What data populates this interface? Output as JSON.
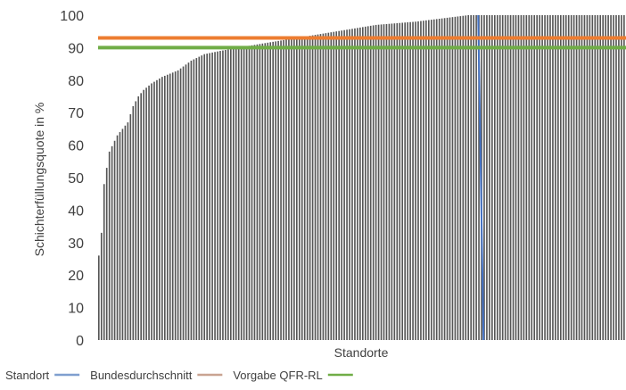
{
  "chart_data": {
    "type": "bar",
    "title": "",
    "xlabel": "Standorte",
    "ylabel": "Schichterfüllungsquote in %",
    "ylim": [
      0,
      100
    ],
    "yticks": [
      0,
      10,
      20,
      30,
      40,
      50,
      60,
      70,
      80,
      90,
      100
    ],
    "grid": false,
    "bar_count": 200,
    "sorted_ascending": true,
    "value_anchors": [
      [
        0,
        26
      ],
      [
        1,
        33
      ],
      [
        2,
        48
      ],
      [
        4,
        58
      ],
      [
        7,
        63
      ],
      [
        9,
        65
      ],
      [
        11,
        67
      ],
      [
        13,
        72
      ],
      [
        15,
        75
      ],
      [
        17,
        77
      ],
      [
        20,
        79
      ],
      [
        24,
        81
      ],
      [
        30,
        83
      ],
      [
        35,
        86
      ],
      [
        40,
        88
      ],
      [
        46,
        89
      ],
      [
        60,
        91
      ],
      [
        75,
        93
      ],
      [
        90,
        95
      ],
      [
        105,
        97
      ],
      [
        120,
        98
      ],
      [
        130,
        99
      ],
      [
        140,
        100
      ],
      [
        199,
        100
      ]
    ],
    "series": [
      {
        "name": "Standort",
        "color": "#7f7f7f"
      }
    ],
    "reference_lines": [
      {
        "name": "Bundesdurchschnitt",
        "orientation": "vertical",
        "color": "#4472c4",
        "legend_color": "#7f9fcf",
        "position_index": 144
      },
      {
        "name": "Vorgabe QFR-RL",
        "orientation": "horizontal",
        "color": "#ed7d31",
        "legend_color": "#c9a492",
        "value": 93
      },
      {
        "name": "",
        "orientation": "horizontal",
        "color": "#70ad47",
        "legend_color": "#70ad47",
        "value": 90
      }
    ],
    "legend": {
      "placement": "bottom-left",
      "entries": [
        {
          "label": "Standort",
          "color": "#7f9fcf"
        },
        {
          "label": "Bundesdurchschnitt",
          "color": "#c9a492"
        },
        {
          "label": "Vorgabe QFR-RL",
          "color": "#70ad47"
        }
      ]
    }
  }
}
